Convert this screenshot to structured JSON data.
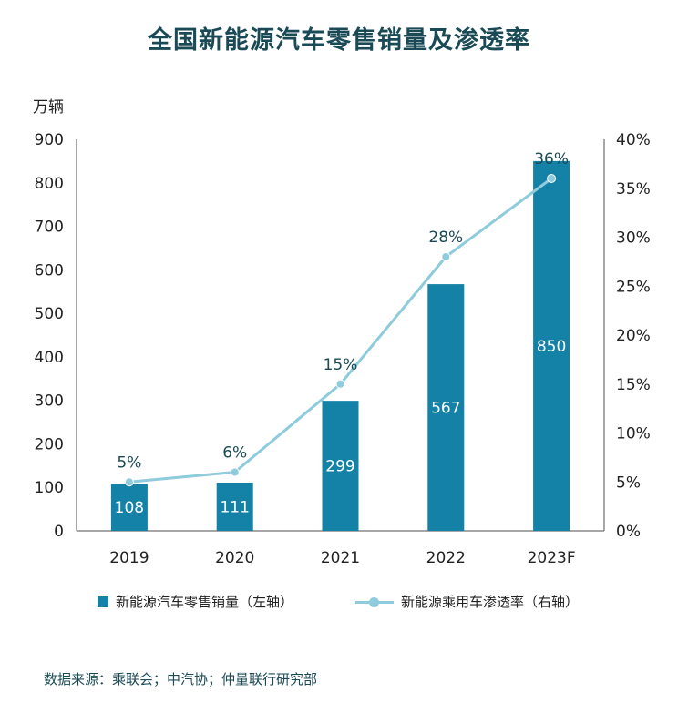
{
  "chart_data": {
    "type": "bar",
    "title": "全国新能源汽车零售销量及渗透率",
    "categories": [
      "2019",
      "2020",
      "2021",
      "2022",
      "2023F"
    ],
    "ylabel": "万辆",
    "ylim": [
      0,
      900
    ],
    "y_ticks": [
      "0",
      "100",
      "200",
      "300",
      "400",
      "500",
      "600",
      "700",
      "800",
      "900"
    ],
    "y2lim": [
      0,
      40
    ],
    "y2_ticks": [
      "0%",
      "5%",
      "10%",
      "15%",
      "20%",
      "25%",
      "30%",
      "35%",
      "40%"
    ],
    "grid": false,
    "legend_position": "bottom",
    "series": [
      {
        "name": "新能源汽车零售销量（左轴）",
        "type": "bar",
        "axis": "left",
        "values": [
          108,
          111,
          299,
          567,
          850
        ],
        "labels": [
          "108",
          "111",
          "299",
          "567",
          "850"
        ],
        "color": "#1481a6"
      },
      {
        "name": "新能源乘用车渗透率（右轴）",
        "type": "line",
        "axis": "right",
        "values": [
          5,
          6,
          15,
          28,
          36
        ],
        "labels": [
          "5%",
          "6%",
          "15%",
          "28%",
          "36%"
        ],
        "color": "#8ecbdc"
      }
    ]
  },
  "source": "数据来源：乘联会；中汽协；仲量联行研究部"
}
